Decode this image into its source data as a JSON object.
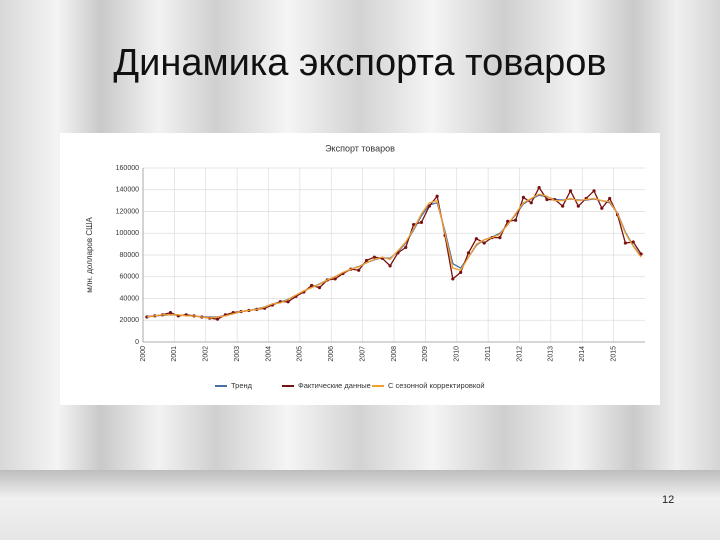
{
  "slide": {
    "title": "Динамика экспорта товаров",
    "page_number": "12"
  },
  "chart_data": {
    "type": "line",
    "title": "Экспорт товаров",
    "y_label": "млн. долларов США",
    "categories": [
      "2000",
      null,
      null,
      null,
      "2001",
      null,
      null,
      null,
      "2002",
      null,
      null,
      null,
      "2003",
      null,
      null,
      null,
      "2004",
      null,
      null,
      null,
      "2005",
      null,
      null,
      null,
      "2006",
      null,
      null,
      null,
      "2007",
      null,
      null,
      null,
      "2008",
      null,
      null,
      null,
      "2009",
      null,
      null,
      null,
      "2010",
      null,
      null,
      null,
      "2011",
      null,
      null,
      null,
      "2012",
      null,
      null,
      null,
      "2013",
      null,
      null,
      null,
      "2014",
      null,
      null,
      null,
      "2015",
      null,
      null,
      null
    ],
    "ylim": [
      0,
      160000
    ],
    "yticks": [
      0,
      20000,
      40000,
      60000,
      80000,
      100000,
      120000,
      140000,
      160000
    ],
    "grid": true,
    "series": [
      {
        "name": "Тренд",
        "color": "#4a6fa5",
        "markers": false,
        "values": [
          23500,
          24000,
          24500,
          25000,
          24800,
          24300,
          23800,
          23200,
          22800,
          23200,
          24200,
          26000,
          27800,
          29000,
          30400,
          32200,
          35000,
          36800,
          39200,
          43000,
          46800,
          50200,
          53400,
          57000,
          60200,
          63800,
          67000,
          69400,
          72800,
          75600,
          77400,
          77000,
          83000,
          91000,
          103000,
          116000,
          126000,
          128000,
          102000,
          72000,
          68000,
          78000,
          89000,
          94000,
          96500,
          100000,
          108000,
          117000,
          127000,
          131500,
          135000,
          133500,
          131000,
          130500,
          131500,
          130500,
          130500,
          131500,
          130000,
          128000,
          118500,
          101000,
          88500,
          79000
        ]
      },
      {
        "name": "Фактические данные",
        "color": "#7a1010",
        "markers": true,
        "values": [
          23000,
          24000,
          25000,
          27000,
          24000,
          25000,
          24000,
          23000,
          22000,
          21000,
          25000,
          27000,
          28000,
          29000,
          30000,
          31000,
          34000,
          37000,
          37000,
          42000,
          46000,
          52000,
          50000,
          57000,
          58000,
          63000,
          67000,
          66000,
          75000,
          78000,
          77000,
          70000,
          82000,
          87000,
          108000,
          110000,
          125000,
          134000,
          98000,
          58000,
          64000,
          82000,
          95000,
          91000,
          96000,
          96000,
          111000,
          112000,
          133000,
          128000,
          142000,
          131000,
          131000,
          125000,
          139000,
          125000,
          132000,
          139000,
          123000,
          132000,
          117000,
          91000,
          92000,
          81000
        ]
      },
      {
        "name": "С сезонной корректировкой",
        "color": "#f0a030",
        "markers": false,
        "values": [
          23000,
          24000,
          25000,
          25000,
          25000,
          24000,
          24000,
          23000,
          22000,
          23000,
          24000,
          26000,
          28000,
          29000,
          30000,
          32000,
          35000,
          36000,
          39000,
          43000,
          47000,
          50000,
          53000,
          57000,
          60000,
          64000,
          67000,
          69000,
          73000,
          76000,
          78000,
          76000,
          84000,
          92000,
          104000,
          118000,
          128000,
          130000,
          100000,
          68000,
          66000,
          78000,
          90000,
          94000,
          96000,
          99000,
          108000,
          118000,
          128000,
          132000,
          136000,
          134000,
          130000,
          130000,
          132000,
          130000,
          131000,
          132000,
          130000,
          129000,
          118000,
          100000,
          88000,
          78000
        ]
      }
    ]
  }
}
